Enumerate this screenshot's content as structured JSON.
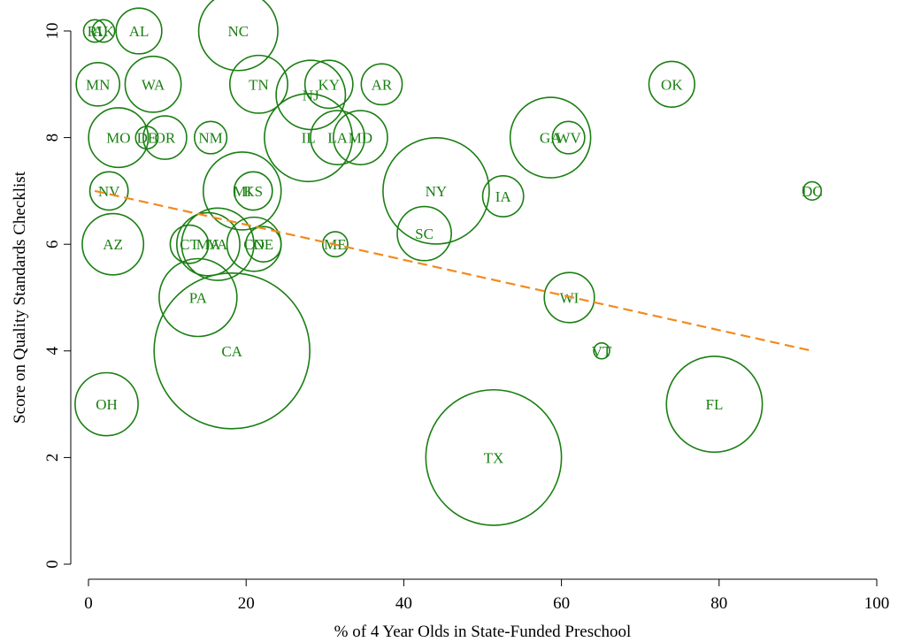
{
  "colors": {
    "bubble": "#1a7f12",
    "trend": "#f28a1e",
    "axis": "#000000",
    "background": "#ffffff"
  },
  "chart_data": {
    "type": "scatter",
    "title": "",
    "xlabel": "% of 4 Year Olds in State-Funded Preschool",
    "ylabel": "Score on Quality Standards Checklist",
    "xlim": [
      0,
      100
    ],
    "ylim": [
      0,
      10
    ],
    "xticks": [
      0,
      20,
      40,
      60,
      80,
      100
    ],
    "yticks": [
      0,
      2,
      4,
      6,
      8,
      10
    ],
    "grid": false,
    "legend": "none",
    "marker": "hollow circle sized by weight",
    "points": [
      {
        "label": "RI",
        "x": 0.8,
        "y": 10,
        "w": 1.2
      },
      {
        "label": "AK",
        "x": 1.9,
        "y": 10,
        "w": 1.2
      },
      {
        "label": "AL",
        "x": 6.4,
        "y": 10,
        "w": 5
      },
      {
        "label": "NC",
        "x": 19.0,
        "y": 10,
        "w": 15
      },
      {
        "label": "MN",
        "x": 1.2,
        "y": 9,
        "w": 4.5
      },
      {
        "label": "WA",
        "x": 8.2,
        "y": 9,
        "w": 7.5
      },
      {
        "label": "TN",
        "x": 21.6,
        "y": 9,
        "w": 8
      },
      {
        "label": "NJ",
        "x": 28.2,
        "y": 8.8,
        "w": 11.5
      },
      {
        "label": "KY",
        "x": 30.5,
        "y": 9,
        "w": 5.5
      },
      {
        "label": "AR",
        "x": 37.2,
        "y": 9,
        "w": 4
      },
      {
        "label": "OK",
        "x": 74.0,
        "y": 9,
        "w": 5
      },
      {
        "label": "MO",
        "x": 3.8,
        "y": 8,
        "w": 8.5
      },
      {
        "label": "DE",
        "x": 7.4,
        "y": 8,
        "w": 1.2
      },
      {
        "label": "OR",
        "x": 9.7,
        "y": 8,
        "w": 4.5
      },
      {
        "label": "NM",
        "x": 15.5,
        "y": 8,
        "w": 2.5
      },
      {
        "label": "IL",
        "x": 27.9,
        "y": 8,
        "w": 18.5
      },
      {
        "label": "LA",
        "x": 31.6,
        "y": 8,
        "w": 7
      },
      {
        "label": "MD",
        "x": 34.5,
        "y": 8,
        "w": 7
      },
      {
        "label": "GA",
        "x": 58.6,
        "y": 8,
        "w": 15.5
      },
      {
        "label": "WV",
        "x": 60.9,
        "y": 8,
        "w": 2.5
      },
      {
        "label": "NV",
        "x": 2.6,
        "y": 7,
        "w": 3.5
      },
      {
        "label": "MI",
        "x": 19.5,
        "y": 7,
        "w": 14.5
      },
      {
        "label": "KS",
        "x": 20.9,
        "y": 7,
        "w": 3.5
      },
      {
        "label": "NY",
        "x": 44.1,
        "y": 7,
        "w": 27
      },
      {
        "label": "IA",
        "x": 52.6,
        "y": 6.9,
        "w": 4
      },
      {
        "label": "DC",
        "x": 91.8,
        "y": 7,
        "w": 0.8
      },
      {
        "label": "CT",
        "x": 12.8,
        "y": 6,
        "w": 3.5
      },
      {
        "label": "MA",
        "x": 15.2,
        "y": 6,
        "w": 9.5
      },
      {
        "label": "VA",
        "x": 16.4,
        "y": 6,
        "w": 12.5
      },
      {
        "label": "CO",
        "x": 21.0,
        "y": 6,
        "w": 7
      },
      {
        "label": "NE",
        "x": 22.2,
        "y": 6,
        "w": 3
      },
      {
        "label": "ME",
        "x": 31.3,
        "y": 6,
        "w": 1.5
      },
      {
        "label": "SC",
        "x": 42.6,
        "y": 6.2,
        "w": 7
      },
      {
        "label": "AZ",
        "x": 3.1,
        "y": 6,
        "w": 9
      },
      {
        "label": "PA",
        "x": 13.9,
        "y": 5,
        "w": 14.5
      },
      {
        "label": "WI",
        "x": 61.0,
        "y": 5,
        "w": 6
      },
      {
        "label": "CA",
        "x": 18.2,
        "y": 4,
        "w": 58
      },
      {
        "label": "VT",
        "x": 65.1,
        "y": 4,
        "w": 0.6
      },
      {
        "label": "OH",
        "x": 2.3,
        "y": 3,
        "w": 9.5
      },
      {
        "label": "FL",
        "x": 79.4,
        "y": 3,
        "w": 22
      },
      {
        "label": "TX",
        "x": 51.4,
        "y": 2,
        "w": 44
      }
    ],
    "trendline": {
      "x": [
        0.8,
        91.8
      ],
      "y": [
        7.0,
        4.0
      ],
      "style": "dashed"
    }
  }
}
